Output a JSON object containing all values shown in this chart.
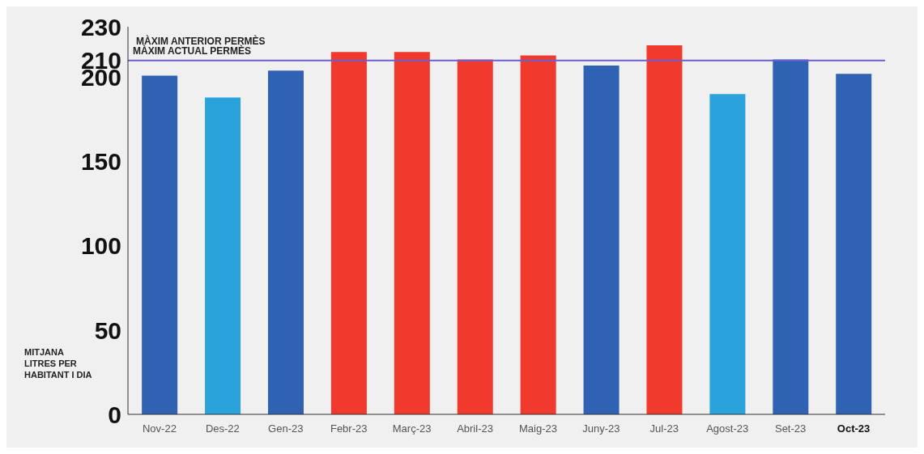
{
  "chart_data": {
    "type": "bar",
    "ylabel": "MITJANA LITRES PER HABITANT I DIA",
    "categories": [
      "Nov-22",
      "Des-22",
      "Gen-23",
      "Febr-23",
      "Març-23",
      "Abril-23",
      "Maig-23",
      "Juny-23",
      "Jul-23",
      "Agost-23",
      "Set-23",
      "Oct-23"
    ],
    "values": [
      201,
      188,
      204,
      215,
      215,
      210.5,
      213,
      207,
      219,
      190,
      210.5,
      202
    ],
    "colors": [
      "#2f62b3",
      "#2aa3dc",
      "#2f62b3",
      "#f03a2e",
      "#f03a2e",
      "#f03a2e",
      "#f03a2e",
      "#2f62b3",
      "#f03a2e",
      "#2aa3dc",
      "#2f62b3",
      "#2f62b3"
    ],
    "ylim": [
      0,
      230
    ],
    "yticks": [
      0,
      50,
      100,
      150,
      200,
      210,
      230
    ],
    "ref_lines": [
      {
        "axis": "y",
        "value": 210,
        "label": "MÀXIM ACTUAL PERMÈS",
        "color": "#6b5fd0"
      }
    ],
    "annotations": [
      "MÀXIM ANTERIOR PERMÈS"
    ],
    "grid": false
  }
}
